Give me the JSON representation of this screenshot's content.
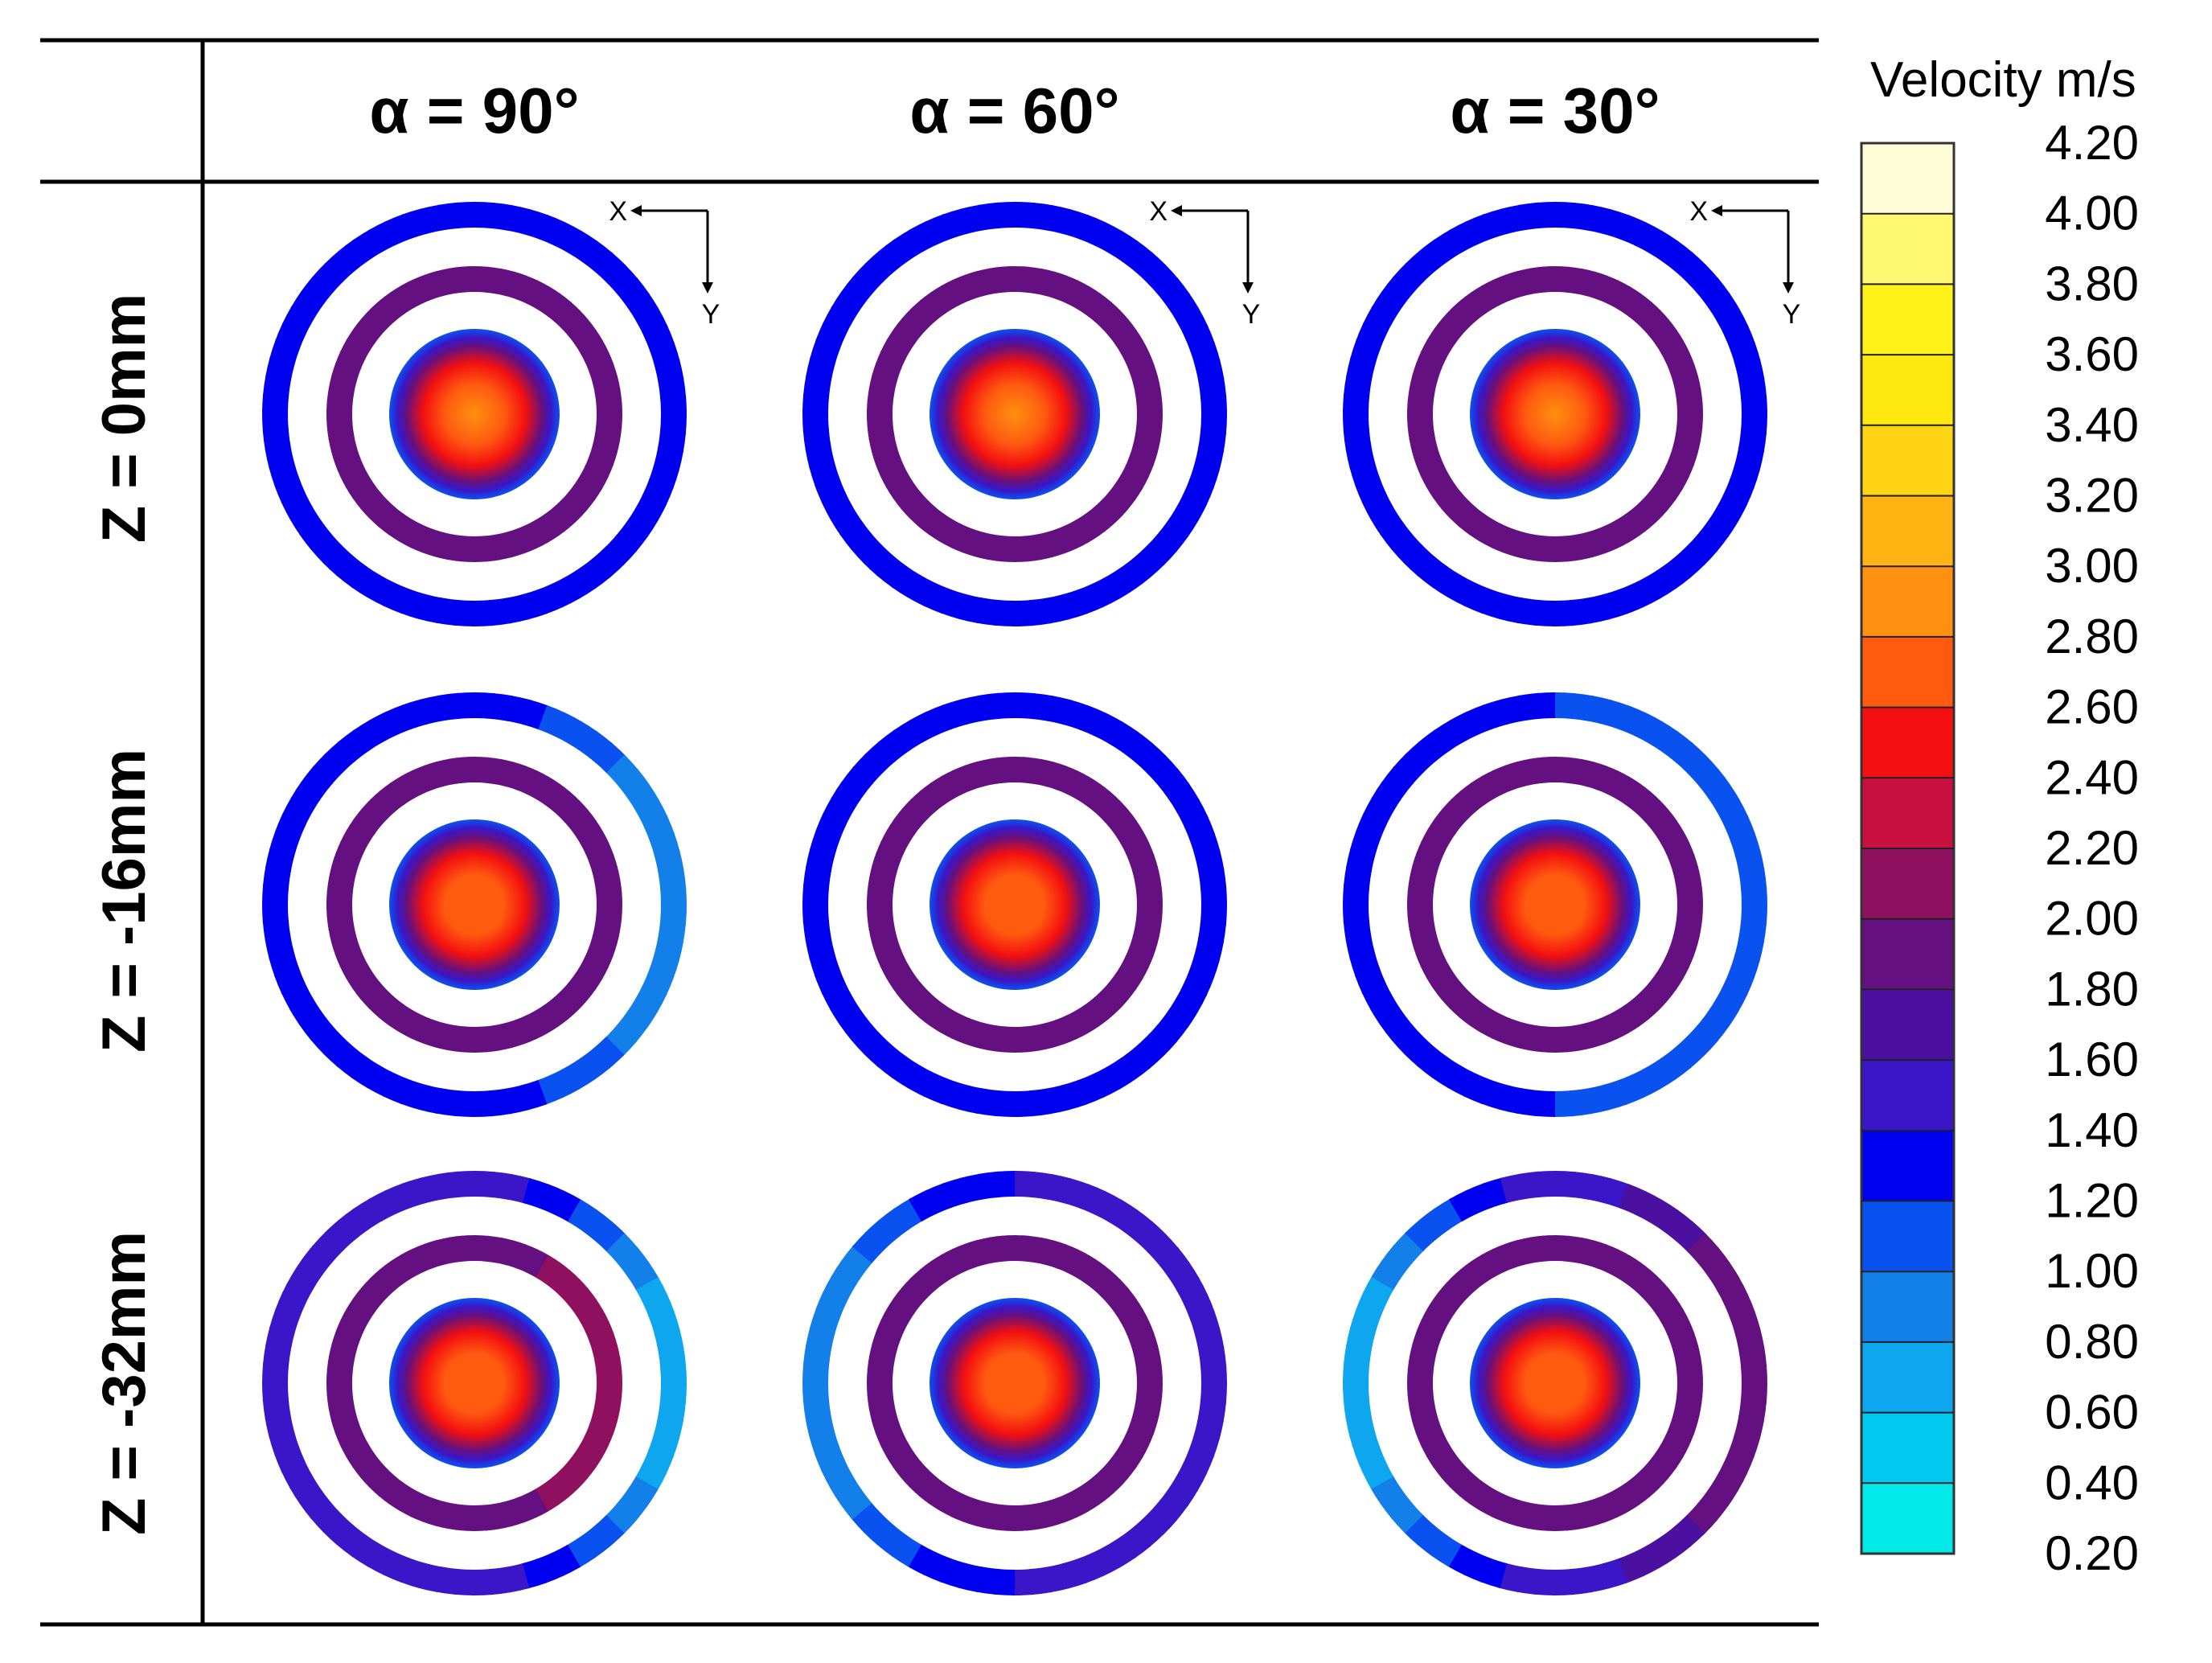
{
  "chart_data": {
    "type": "heatmap",
    "title": "",
    "column_headers": [
      "α = 90°",
      "α = 60°",
      "α = 30°"
    ],
    "row_headers": [
      "Z = 0mm",
      "Z = -16mm",
      "Z = -32mm"
    ],
    "axis_labels": {
      "x": "X",
      "y": "Y"
    },
    "colorbar": {
      "title": "Velocity m/s",
      "ticks": [
        "4.20",
        "4.00",
        "3.80",
        "3.60",
        "3.40",
        "3.20",
        "3.00",
        "2.80",
        "2.60",
        "2.40",
        "2.20",
        "2.00",
        "1.80",
        "1.60",
        "1.40",
        "1.20",
        "1.00",
        "0.80",
        "0.60",
        "0.40",
        "0.20"
      ],
      "range": [
        0.2,
        4.2
      ],
      "colors": [
        "#00eaea",
        "#00c8f0",
        "#0ea6ee",
        "#1280e8",
        "#0a52f0",
        "#0000f0",
        "#3a16c8",
        "#4c10a0",
        "#641080",
        "#901060",
        "#c81040",
        "#f41010",
        "#ff5a10",
        "#ff9010",
        "#ffb414",
        "#ffd414",
        "#ffe810",
        "#fff21a",
        "#fff870",
        "#fffcd8"
      ]
    },
    "ring_scale": [
      "inner jet core",
      "inner ring",
      "middle ring",
      "outer ring"
    ],
    "cells": [
      {
        "row": "Z = 0mm",
        "col": "α = 90°",
        "core": 2.9,
        "inner_edge": 1.1,
        "middle_ring": 1.85,
        "outer_ring": 1.2
      },
      {
        "row": "Z = 0mm",
        "col": "α = 60°",
        "core": 2.9,
        "inner_edge": 1.1,
        "middle_ring": 1.85,
        "outer_ring": 1.2
      },
      {
        "row": "Z = 0mm",
        "col": "α = 30°",
        "core": 2.9,
        "inner_edge": 1.1,
        "middle_ring": 1.85,
        "outer_ring": 1.2
      },
      {
        "row": "Z = -16mm",
        "col": "α = 90°",
        "core": 2.8,
        "inner_edge": 1.1,
        "middle_ring": 1.9,
        "outer_ring": 1.3,
        "outer_ring_right": 0.8
      },
      {
        "row": "Z = -16mm",
        "col": "α = 60°",
        "core": 2.8,
        "inner_edge": 1.1,
        "middle_ring": 1.85,
        "outer_ring": 1.2
      },
      {
        "row": "Z = -16mm",
        "col": "α = 30°",
        "core": 2.8,
        "inner_edge": 1.1,
        "middle_ring": 1.85,
        "outer_ring": 1.2,
        "outer_ring_right": 1.0
      },
      {
        "row": "Z = -32mm",
        "col": "α = 90°",
        "core": 2.8,
        "inner_edge": 1.1,
        "middle_ring": 1.9,
        "middle_ring_right": 2.2,
        "outer_ring": 1.5,
        "outer_ring_right": 0.6
      },
      {
        "row": "Z = -32mm",
        "col": "α = 60°",
        "core": 2.8,
        "inner_edge": 1.1,
        "middle_ring": 1.85,
        "outer_ring": 1.4,
        "outer_ring_left": 0.8
      },
      {
        "row": "Z = -32mm",
        "col": "α = 30°",
        "core": 2.8,
        "inner_edge": 1.1,
        "middle_ring": 1.9,
        "outer_ring": 1.5,
        "outer_ring_left": 0.6,
        "outer_ring_right": 2.0
      }
    ]
  }
}
